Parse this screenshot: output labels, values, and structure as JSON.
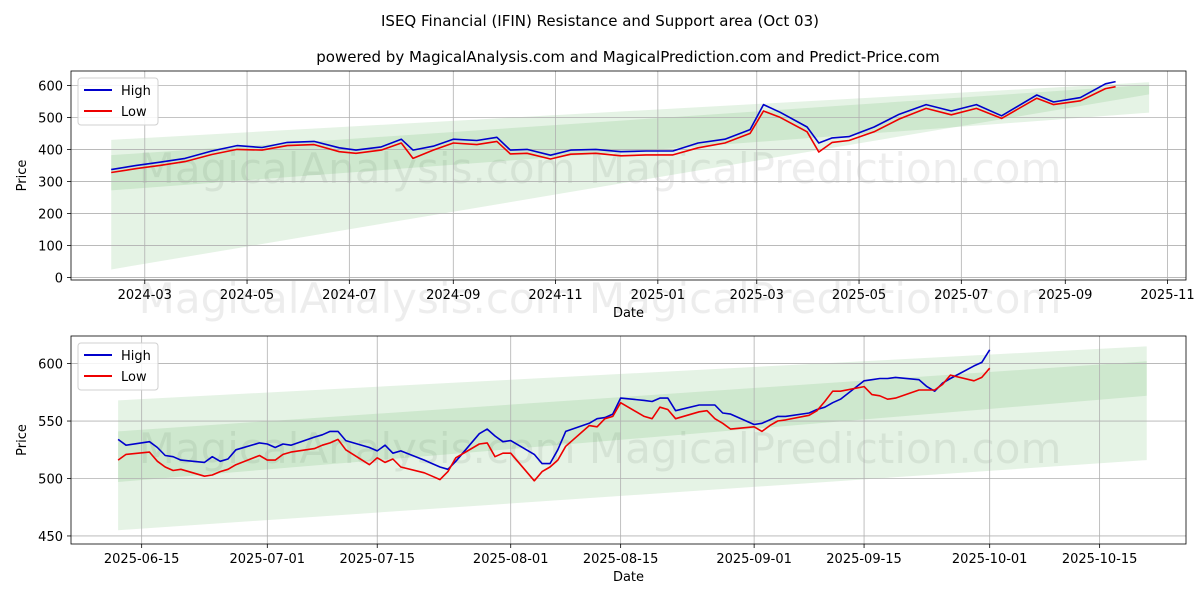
{
  "title": "ISEQ Financial (IFIN) Resistance and Support area (Oct 03)",
  "subtitle": "powered by MagicalAnalysis.com and MagicalPrediction.com and Predict-Price.com",
  "watermarks": [
    "MagicalAnalysis.com",
    "MagicalPrediction.com"
  ],
  "colors": {
    "high": "#0000cc",
    "low": "#ee0000",
    "band_fill": "#2ca02c",
    "grid": "#b0b0b0"
  },
  "chart_data": [
    {
      "type": "line",
      "name": "full-range",
      "xlabel": "Date",
      "ylabel": "Price",
      "grid": true,
      "legend": "top-left",
      "xlim": [
        "2024-01-17",
        "2025-11-12"
      ],
      "ylim": [
        -8,
        645
      ],
      "xticks": [
        {
          "date": "2024-03-01",
          "label": "2024-03"
        },
        {
          "date": "2024-05-01",
          "label": "2024-05"
        },
        {
          "date": "2024-07-01",
          "label": "2024-07"
        },
        {
          "date": "2024-09-01",
          "label": "2024-09"
        },
        {
          "date": "2024-11-01",
          "label": "2024-11"
        },
        {
          "date": "2025-01-01",
          "label": "2025-01"
        },
        {
          "date": "2025-03-01",
          "label": "2025-03"
        },
        {
          "date": "2025-05-01",
          "label": "2025-05"
        },
        {
          "date": "2025-07-01",
          "label": "2025-07"
        },
        {
          "date": "2025-09-01",
          "label": "2025-09"
        },
        {
          "date": "2025-11-01",
          "label": "2025-11"
        }
      ],
      "yticks": [
        0,
        100,
        200,
        300,
        400,
        500,
        600
      ],
      "bands": [
        {
          "x": [
            "2024-02-10",
            "2025-10-21"
          ],
          "upper": [
            430,
            610
          ],
          "lower": [
            272,
            515
          ]
        },
        {
          "x": [
            "2024-02-10",
            "2025-10-21"
          ],
          "upper": [
            382,
            602
          ],
          "lower": [
            25,
            572
          ]
        }
      ],
      "series": [
        {
          "name": "High",
          "x": [
            "2024-02-10",
            "2024-02-25",
            "2024-03-10",
            "2024-03-25",
            "2024-04-10",
            "2024-04-25",
            "2024-05-10",
            "2024-05-25",
            "2024-06-10",
            "2024-06-25",
            "2024-07-05",
            "2024-07-20",
            "2024-08-01",
            "2024-08-08",
            "2024-08-20",
            "2024-09-01",
            "2024-09-15",
            "2024-09-27",
            "2024-10-05",
            "2024-10-15",
            "2024-10-29",
            "2024-11-10",
            "2024-11-25",
            "2024-12-10",
            "2024-12-25",
            "2025-01-10",
            "2025-01-25",
            "2025-02-10",
            "2025-02-25",
            "2025-03-05",
            "2025-03-15",
            "2025-03-31",
            "2025-04-07",
            "2025-04-15",
            "2025-04-25",
            "2025-05-10",
            "2025-05-25",
            "2025-06-10",
            "2025-06-25",
            "2025-07-10",
            "2025-07-25",
            "2025-08-15",
            "2025-08-25",
            "2025-09-10",
            "2025-09-25",
            "2025-10-01"
          ],
          "values": [
            337,
            350,
            360,
            372,
            395,
            412,
            406,
            422,
            425,
            405,
            398,
            408,
            432,
            398,
            410,
            432,
            428,
            438,
            398,
            400,
            382,
            398,
            400,
            393,
            395,
            395,
            420,
            432,
            462,
            540,
            516,
            470,
            420,
            436,
            440,
            470,
            510,
            540,
            520,
            540,
            505,
            570,
            548,
            562,
            605,
            612
          ]
        },
        {
          "name": "Low",
          "x": [
            "2024-02-10",
            "2024-02-25",
            "2024-03-10",
            "2024-03-25",
            "2024-04-10",
            "2024-04-25",
            "2024-05-10",
            "2024-05-25",
            "2024-06-10",
            "2024-06-25",
            "2024-07-05",
            "2024-07-20",
            "2024-08-01",
            "2024-08-08",
            "2024-08-20",
            "2024-09-01",
            "2024-09-15",
            "2024-09-27",
            "2024-10-05",
            "2024-10-15",
            "2024-10-29",
            "2024-11-10",
            "2024-11-25",
            "2024-12-10",
            "2024-12-25",
            "2025-01-10",
            "2025-01-25",
            "2025-02-10",
            "2025-02-25",
            "2025-03-05",
            "2025-03-15",
            "2025-03-31",
            "2025-04-07",
            "2025-04-15",
            "2025-04-25",
            "2025-05-10",
            "2025-05-25",
            "2025-06-10",
            "2025-06-25",
            "2025-07-10",
            "2025-07-25",
            "2025-08-15",
            "2025-08-25",
            "2025-09-10",
            "2025-09-25",
            "2025-10-01"
          ],
          "values": [
            328,
            340,
            350,
            362,
            384,
            400,
            398,
            412,
            415,
            393,
            388,
            398,
            420,
            372,
            398,
            420,
            415,
            425,
            386,
            388,
            370,
            385,
            388,
            380,
            383,
            383,
            405,
            420,
            450,
            520,
            500,
            455,
            392,
            422,
            428,
            455,
            495,
            528,
            508,
            528,
            497,
            560,
            540,
            552,
            590,
            596
          ]
        }
      ]
    },
    {
      "type": "line",
      "name": "zoomed-range",
      "xlabel": "Date",
      "ylabel": "Price",
      "grid": true,
      "legend": "top-left",
      "xlim": [
        "2025-06-06",
        "2025-10-26"
      ],
      "ylim": [
        443,
        624
      ],
      "xticks": [
        {
          "date": "2025-06-15",
          "label": "2025-06-15"
        },
        {
          "date": "2025-07-01",
          "label": "2025-07-01"
        },
        {
          "date": "2025-07-15",
          "label": "2025-07-15"
        },
        {
          "date": "2025-08-01",
          "label": "2025-08-01"
        },
        {
          "date": "2025-08-15",
          "label": "2025-08-15"
        },
        {
          "date": "2025-09-01",
          "label": "2025-09-01"
        },
        {
          "date": "2025-09-15",
          "label": "2025-09-15"
        },
        {
          "date": "2025-10-01",
          "label": "2025-10-01"
        },
        {
          "date": "2025-10-15",
          "label": "2025-10-15"
        }
      ],
      "yticks": [
        450,
        500,
        550,
        600
      ],
      "bands": [
        {
          "x": [
            "2025-06-12",
            "2025-10-21"
          ],
          "upper": [
            568,
            615
          ],
          "lower": [
            455,
            516
          ]
        },
        {
          "x": [
            "2025-06-12",
            "2025-10-21"
          ],
          "upper": [
            541,
            602
          ],
          "lower": [
            497,
            572
          ]
        }
      ],
      "series": [
        {
          "name": "High",
          "x": [
            "2025-06-12",
            "2025-06-13",
            "2025-06-16",
            "2025-06-17",
            "2025-06-18",
            "2025-06-19",
            "2025-06-20",
            "2025-06-23",
            "2025-06-24",
            "2025-06-25",
            "2025-06-26",
            "2025-06-27",
            "2025-06-30",
            "2025-07-01",
            "2025-07-02",
            "2025-07-03",
            "2025-07-04",
            "2025-07-07",
            "2025-07-08",
            "2025-07-09",
            "2025-07-10",
            "2025-07-11",
            "2025-07-14",
            "2025-07-15",
            "2025-07-16",
            "2025-07-17",
            "2025-07-18",
            "2025-07-21",
            "2025-07-22",
            "2025-07-23",
            "2025-07-24",
            "2025-07-25",
            "2025-07-28",
            "2025-07-29",
            "2025-07-30",
            "2025-07-31",
            "2025-08-01",
            "2025-08-04",
            "2025-08-05",
            "2025-08-06",
            "2025-08-07",
            "2025-08-08",
            "2025-08-11",
            "2025-08-12",
            "2025-08-13",
            "2025-08-14",
            "2025-08-15",
            "2025-08-18",
            "2025-08-19",
            "2025-08-20",
            "2025-08-21",
            "2025-08-22",
            "2025-08-25",
            "2025-08-26",
            "2025-08-27",
            "2025-08-28",
            "2025-08-29",
            "2025-09-01",
            "2025-09-02",
            "2025-09-03",
            "2025-09-04",
            "2025-09-05",
            "2025-09-08",
            "2025-09-09",
            "2025-09-10",
            "2025-09-11",
            "2025-09-12",
            "2025-09-15",
            "2025-09-16",
            "2025-09-17",
            "2025-09-18",
            "2025-09-19",
            "2025-09-22",
            "2025-09-23",
            "2025-09-24",
            "2025-09-25",
            "2025-09-26",
            "2025-09-29",
            "2025-09-30",
            "2025-10-01"
          ],
          "values": [
            534,
            529,
            532,
            527,
            520,
            519,
            516,
            514,
            519,
            515,
            517,
            525,
            531,
            530,
            527,
            530,
            529,
            536,
            538,
            541,
            541,
            533,
            527,
            524,
            529,
            522,
            524,
            516,
            513,
            510,
            508,
            515,
            539,
            543,
            537,
            532,
            533,
            521,
            513,
            513,
            525,
            541,
            548,
            552,
            553,
            556,
            570,
            568,
            567,
            570,
            570,
            559,
            564,
            564,
            564,
            557,
            556,
            547,
            548,
            551,
            554,
            554,
            557,
            560,
            562,
            566,
            569,
            585,
            586,
            587,
            587,
            588,
            586,
            580,
            576,
            583,
            587,
            598,
            601,
            612
          ]
        },
        {
          "name": "Low",
          "x": [
            "2025-06-12",
            "2025-06-13",
            "2025-06-16",
            "2025-06-17",
            "2025-06-18",
            "2025-06-19",
            "2025-06-20",
            "2025-06-23",
            "2025-06-24",
            "2025-06-25",
            "2025-06-26",
            "2025-06-27",
            "2025-06-30",
            "2025-07-01",
            "2025-07-02",
            "2025-07-03",
            "2025-07-04",
            "2025-07-07",
            "2025-07-08",
            "2025-07-09",
            "2025-07-10",
            "2025-07-11",
            "2025-07-14",
            "2025-07-15",
            "2025-07-16",
            "2025-07-17",
            "2025-07-18",
            "2025-07-21",
            "2025-07-22",
            "2025-07-23",
            "2025-07-24",
            "2025-07-25",
            "2025-07-28",
            "2025-07-29",
            "2025-07-30",
            "2025-07-31",
            "2025-08-01",
            "2025-08-04",
            "2025-08-05",
            "2025-08-06",
            "2025-08-07",
            "2025-08-08",
            "2025-08-11",
            "2025-08-12",
            "2025-08-13",
            "2025-08-14",
            "2025-08-15",
            "2025-08-18",
            "2025-08-19",
            "2025-08-20",
            "2025-08-21",
            "2025-08-22",
            "2025-08-25",
            "2025-08-26",
            "2025-08-27",
            "2025-08-28",
            "2025-08-29",
            "2025-09-01",
            "2025-09-02",
            "2025-09-03",
            "2025-09-04",
            "2025-09-05",
            "2025-09-08",
            "2025-09-09",
            "2025-09-10",
            "2025-09-11",
            "2025-09-12",
            "2025-09-15",
            "2025-09-16",
            "2025-09-17",
            "2025-09-18",
            "2025-09-19",
            "2025-09-22",
            "2025-09-23",
            "2025-09-24",
            "2025-09-25",
            "2025-09-26",
            "2025-09-29",
            "2025-09-30",
            "2025-10-01"
          ],
          "values": [
            516,
            521,
            523,
            515,
            510,
            507,
            508,
            502,
            503,
            506,
            508,
            512,
            520,
            516,
            516,
            521,
            523,
            526,
            529,
            531,
            534,
            525,
            512,
            518,
            514,
            517,
            510,
            505,
            502,
            499,
            506,
            518,
            530,
            531,
            519,
            522,
            522,
            498,
            506,
            510,
            516,
            528,
            546,
            545,
            552,
            554,
            566,
            554,
            552,
            562,
            560,
            552,
            558,
            559,
            552,
            548,
            543,
            545,
            541,
            546,
            550,
            551,
            555,
            559,
            567,
            576,
            576,
            580,
            573,
            572,
            569,
            570,
            577,
            577,
            577,
            582,
            590,
            585,
            588,
            596
          ]
        }
      ]
    }
  ]
}
